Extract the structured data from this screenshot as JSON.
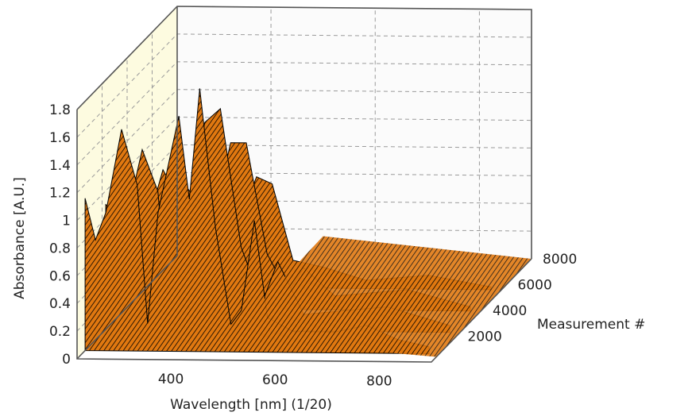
{
  "chart_data": {
    "type": "surface3d",
    "title": "",
    "xlabel": "Wavelength [nm] (1/20)",
    "ylabel": "Absorbance [A.U.]",
    "zlabel": "Measurement #",
    "x_ticks": [
      "400",
      "600",
      "800"
    ],
    "y_ticks": [
      "0",
      "0.2",
      "0.4",
      "0.6",
      "0.8",
      "1",
      "1.2",
      "1.4",
      "1.6",
      "1.8"
    ],
    "z_ticks": [
      "2000",
      "4000",
      "6000",
      "8000"
    ],
    "xlim": [
      220,
      900
    ],
    "ylim": [
      0,
      1.8
    ],
    "zlim": [
      0,
      8000
    ],
    "grid": true,
    "colors": {
      "surface": "#e07810",
      "mesh": "#000000",
      "back_wall": "#fbfbfb",
      "side_wall": "#fdfbe0"
    },
    "series": [
      {
        "values": [
          [
            220,
            1.1
          ],
          [
            240,
            0.8
          ],
          [
            260,
            1.0
          ],
          [
            290,
            1.6
          ],
          [
            320,
            1.2
          ],
          [
            340,
            0.2
          ],
          [
            360,
            1.0
          ],
          [
            400,
            1.7
          ],
          [
            420,
            1.1
          ],
          [
            440,
            1.9
          ],
          [
            470,
            0.9
          ],
          [
            500,
            0.2
          ],
          [
            520,
            0.3
          ],
          [
            545,
            0.95
          ],
          [
            570,
            0.25
          ],
          [
            620,
            0.15
          ],
          [
            700,
            0.15
          ],
          [
            760,
            0.2
          ],
          [
            820,
            0.1
          ],
          [
            880,
            0.05
          ]
        ]
      },
      {
        "values": [
          [
            220,
            0.9
          ],
          [
            260,
            0.8
          ],
          [
            290,
            1.3
          ],
          [
            320,
            1.0
          ],
          [
            340,
            0.15
          ],
          [
            380,
            0.9
          ],
          [
            410,
            1.5
          ],
          [
            440,
            1.6
          ],
          [
            480,
            0.6
          ],
          [
            520,
            0.2
          ],
          [
            550,
            0.5
          ],
          [
            600,
            0.12
          ],
          [
            760,
            0.18
          ],
          [
            880,
            0.05
          ]
        ]
      },
      {
        "values": [
          [
            220,
            0.7
          ],
          [
            260,
            0.6
          ],
          [
            290,
            1.0
          ],
          [
            320,
            0.8
          ],
          [
            340,
            0.1
          ],
          [
            390,
            0.7
          ],
          [
            420,
            1.2
          ],
          [
            450,
            1.2
          ],
          [
            490,
            0.4
          ],
          [
            530,
            0.12
          ],
          [
            560,
            0.3
          ],
          [
            620,
            0.1
          ],
          [
            760,
            0.15
          ],
          [
            880,
            0.03
          ]
        ]
      },
      {
        "values": [
          [
            220,
            0.5
          ],
          [
            260,
            0.45
          ],
          [
            290,
            0.75
          ],
          [
            320,
            0.6
          ],
          [
            340,
            0.06
          ],
          [
            400,
            0.5
          ],
          [
            430,
            0.8
          ],
          [
            460,
            0.75
          ],
          [
            500,
            0.2
          ],
          [
            560,
            0.15
          ],
          [
            640,
            0.06
          ],
          [
            760,
            0.1
          ],
          [
            880,
            0.02
          ]
        ]
      }
    ]
  }
}
